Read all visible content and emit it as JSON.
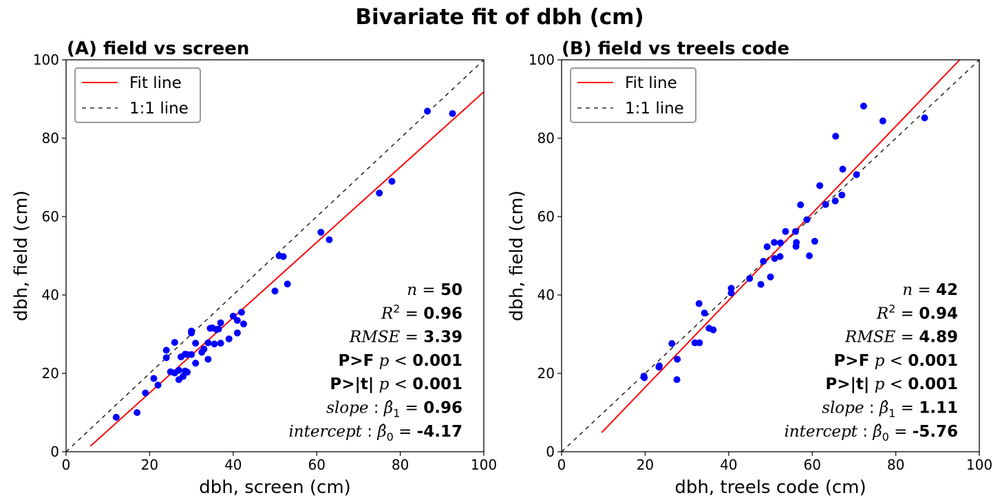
{
  "figure": {
    "suptitle": "Bivariate fit of dbh (cm)"
  },
  "chart_data": [
    {
      "type": "scatter",
      "title": "(A) field vs screen",
      "xlabel": "dbh, screen (cm)",
      "ylabel": "dbh, field (cm)",
      "xlim": [
        0,
        100
      ],
      "ylim": [
        0,
        100
      ],
      "xticks": [
        "0",
        "20",
        "40",
        "60",
        "80",
        "100"
      ],
      "yticks": [
        "0",
        "20",
        "40",
        "60",
        "80",
        "100"
      ],
      "legend_position": "top-left",
      "legend": [
        {
          "label": "Fit line",
          "style": "solid",
          "color": "#ff0000"
        },
        {
          "label": "1:1 line",
          "style": "dashed",
          "color": "#000000"
        }
      ],
      "point_color": "#0000ff",
      "fit_line": {
        "slope": 0.96,
        "intercept": -4.17,
        "x_start": 5.8,
        "x_end": 100
      },
      "identity_line": {
        "x_start": 0,
        "x_end": 100
      },
      "stats": {
        "n_label": "n",
        "n": "50",
        "r2_label": "R",
        "r2": "0.96",
        "rmse_label": "RMSE",
        "rmse": "3.39",
        "pf_label": "P>F",
        "pf_value": "0.001",
        "pt_label": "P>|t|",
        "pt_value": "0.001",
        "slope_label": "slope",
        "slope": "0.96",
        "intercept_label": "intercept",
        "intercept": "-4.17"
      },
      "x": [
        12,
        17,
        19,
        21,
        22,
        24,
        24,
        25,
        26,
        26,
        27,
        27,
        27.5,
        28,
        28.5,
        28.5,
        29,
        29,
        30,
        30,
        30,
        31,
        31,
        32.5,
        33,
        34,
        34,
        34.5,
        35,
        35.5,
        36,
        36.5,
        37,
        37,
        39,
        40,
        41,
        41,
        42,
        42.5,
        50,
        51,
        52,
        53,
        61,
        63,
        75,
        78,
        86.5,
        92.5
      ],
      "y": [
        8.8,
        10,
        15,
        18.7,
        17,
        25.9,
        24,
        20.4,
        27.9,
        20.1,
        20.8,
        18.4,
        24.2,
        19.2,
        20.6,
        24.9,
        20.3,
        24.8,
        30.8,
        30.3,
        24.8,
        27.7,
        22.6,
        25.4,
        26.2,
        27.8,
        23.6,
        31.5,
        31.6,
        27.5,
        31.2,
        31.3,
        32.9,
        27.7,
        28.8,
        34.6,
        30.3,
        33.5,
        35.6,
        32.6,
        41,
        50,
        49.8,
        42.8,
        56,
        54.1,
        66,
        69,
        86.9,
        86.3
      ]
    },
    {
      "type": "scatter",
      "title": "(B) field vs treels code",
      "xlabel": "dbh, treels code (cm)",
      "ylabel": "dbh, field (cm)",
      "xlim": [
        0,
        100
      ],
      "ylim": [
        0,
        100
      ],
      "xticks": [
        "0",
        "20",
        "40",
        "60",
        "80",
        "100"
      ],
      "yticks": [
        "0",
        "20",
        "40",
        "60",
        "80",
        "100"
      ],
      "legend_position": "top-left",
      "legend": [
        {
          "label": "Fit line",
          "style": "solid",
          "color": "#ff0000"
        },
        {
          "label": "1:1 line",
          "style": "dashed",
          "color": "#000000"
        }
      ],
      "point_color": "#0000ff",
      "fit_line": {
        "slope": 1.11,
        "intercept": -5.76,
        "x_start": 9.6,
        "x_end": 95.3
      },
      "identity_line": {
        "x_start": 0,
        "x_end": 100
      },
      "stats": {
        "n_label": "n",
        "n": "42",
        "r2_label": "R",
        "r2": "0.94",
        "rmse_label": "RMSE",
        "rmse": "4.89",
        "pf_label": "P>F",
        "pf_value": "0.001",
        "pt_label": "P>|t|",
        "pt_value": "0.001",
        "slope_label": "slope",
        "slope": "1.11",
        "intercept_label": "intercept",
        "intercept": "-5.76"
      },
      "x": [
        19.7,
        19.8,
        23.3,
        23.4,
        26.4,
        27.6,
        27.7,
        31.9,
        32.9,
        33.0,
        34.2,
        35.3,
        36.3,
        40.6,
        40.6,
        45.0,
        47.7,
        48.3,
        49.2,
        50.0,
        50.9,
        51.0,
        52.3,
        52.4,
        53.6,
        56.0,
        56.1,
        56.2,
        57.2,
        58.7,
        59.3,
        60.6,
        61.8,
        63.2,
        65.5,
        65.6,
        67.1,
        67.3,
        70.6,
        72.3,
        76.9,
        86.9
      ],
      "y": [
        19.3,
        18.9,
        21.6,
        21.9,
        27.6,
        18.4,
        23.6,
        27.8,
        37.8,
        27.8,
        35.4,
        31.5,
        31.1,
        41.7,
        40.5,
        44.2,
        42.7,
        48.6,
        52.3,
        44.6,
        53.4,
        49.3,
        49.8,
        53.3,
        56.2,
        56.2,
        52.4,
        53.4,
        63,
        59.2,
        50,
        53.7,
        67.9,
        63.1,
        64,
        80.5,
        65.5,
        72.1,
        70.7,
        88.2,
        84.4,
        85.2
      ]
    }
  ]
}
